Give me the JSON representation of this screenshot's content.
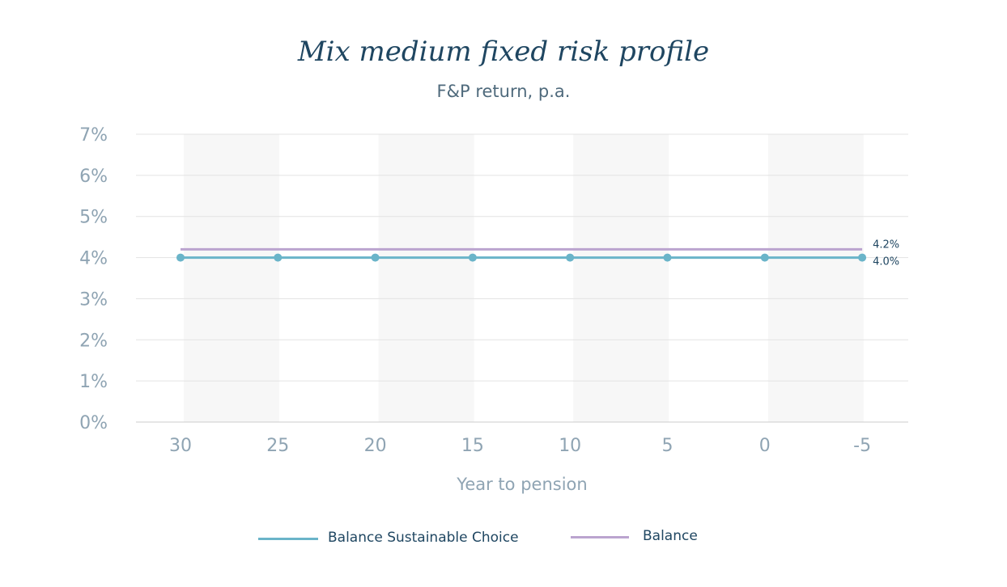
{
  "chart_data": {
    "type": "line",
    "title": "Mix medium fixed risk profile",
    "subtitle": "F&P return, p.a.",
    "xlabel": "Year to pension",
    "ylabel": "",
    "x": [
      "30",
      "25",
      "20",
      "15",
      "10",
      "5",
      "0",
      "-5"
    ],
    "y_ticks": [
      "0%",
      "1%",
      "2%",
      "3%",
      "4%",
      "5%",
      "6%",
      "7%"
    ],
    "ylim": [
      0,
      7
    ],
    "grid": true,
    "legend_position": "bottom",
    "series": [
      {
        "name": "Balance Sustainable Choice",
        "color": "#6ab4c9",
        "values": [
          4.0,
          4.0,
          4.0,
          4.0,
          4.0,
          4.0,
          4.0,
          4.0
        ],
        "markers": true,
        "end_label": "4.0%"
      },
      {
        "name": "Balance",
        "color": "#bba4cf",
        "values": [
          4.2,
          4.2,
          4.2,
          4.2,
          4.2,
          4.2,
          4.2,
          4.2
        ],
        "markers": false,
        "end_label": "4.2%"
      }
    ]
  }
}
